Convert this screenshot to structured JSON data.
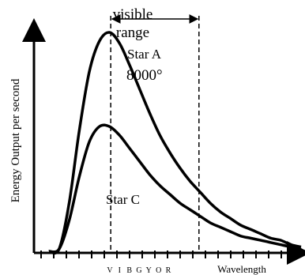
{
  "chart_data": {
    "type": "line",
    "ylabel": "Energy Output per second",
    "xlabel": "Wavelength",
    "spectrum_letters": [
      "V",
      "I",
      "B",
      "G",
      "Y",
      "O",
      "R"
    ],
    "visible_range_label": [
      "visible",
      "range"
    ],
    "series": [
      {
        "name": "Star A",
        "annotation": [
          "Star A",
          "8000°"
        ],
        "x": [
          0.0,
          0.04,
          0.08,
          0.12,
          0.16,
          0.2,
          0.24,
          0.28,
          0.32,
          0.36,
          0.4,
          0.44,
          0.48,
          0.52,
          0.56,
          0.6,
          0.64,
          0.68,
          0.72,
          0.76,
          0.8,
          0.84,
          0.88,
          0.92,
          0.96,
          1.0
        ],
        "y": [
          0.0,
          0.01,
          0.22,
          0.55,
          0.82,
          0.96,
          1.0,
          0.95,
          0.85,
          0.74,
          0.63,
          0.53,
          0.45,
          0.38,
          0.32,
          0.27,
          0.22,
          0.18,
          0.15,
          0.12,
          0.1,
          0.08,
          0.06,
          0.05,
          0.03,
          0.02
        ]
      },
      {
        "name": "Star C",
        "annotation": [
          "Star C"
        ],
        "x": [
          0.0,
          0.04,
          0.08,
          0.12,
          0.16,
          0.2,
          0.24,
          0.28,
          0.32,
          0.36,
          0.4,
          0.44,
          0.48,
          0.52,
          0.56,
          0.6,
          0.64,
          0.68,
          0.72,
          0.76,
          0.8,
          0.84,
          0.88,
          0.92,
          0.96,
          1.0
        ],
        "y": [
          0.0,
          0.01,
          0.14,
          0.34,
          0.5,
          0.57,
          0.57,
          0.53,
          0.47,
          0.41,
          0.35,
          0.3,
          0.26,
          0.22,
          0.19,
          0.16,
          0.13,
          0.11,
          0.09,
          0.07,
          0.06,
          0.05,
          0.04,
          0.03,
          0.02,
          0.01
        ]
      }
    ],
    "visible_band": {
      "start": 0.245,
      "end": 0.595
    },
    "xlim": [
      0,
      1
    ],
    "ylim": [
      0,
      1
    ],
    "grid": false
  }
}
